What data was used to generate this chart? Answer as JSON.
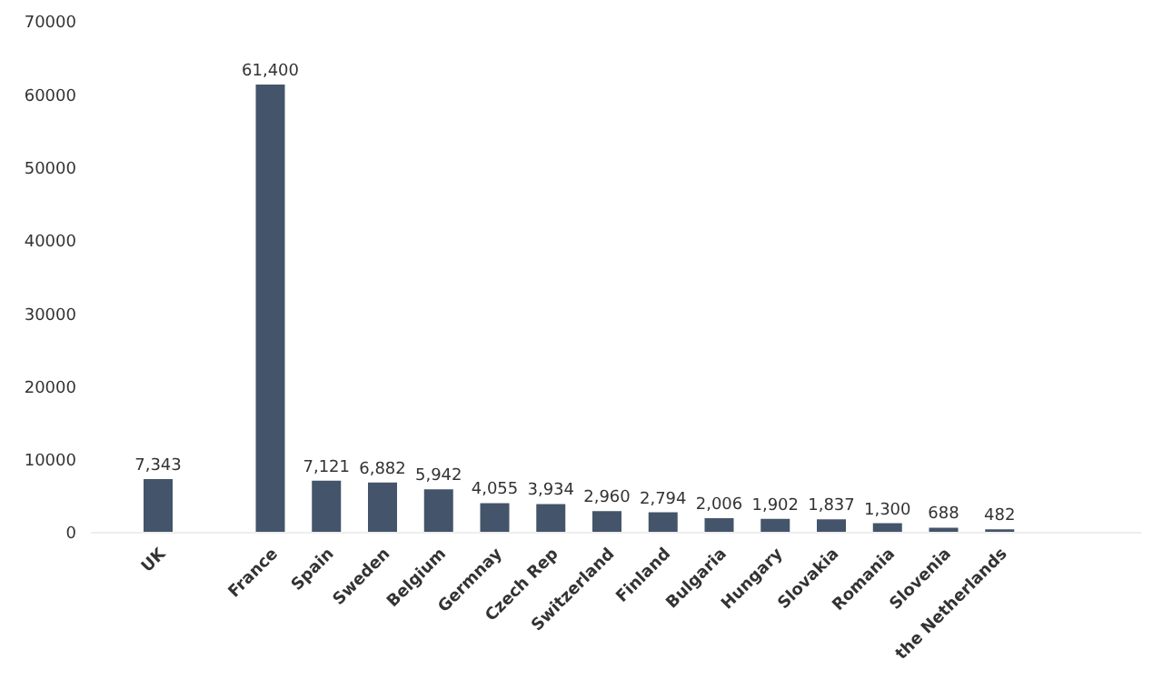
{
  "chart_data": {
    "type": "bar",
    "categories": [
      "UK",
      null,
      "France",
      "Spain",
      "Sweden",
      "Belgium",
      "Germnay",
      "Czech Rep",
      "Switzerland",
      "Finland",
      "Bulgaria",
      "Hungary",
      "Slovakia",
      "Romania",
      "Slovenia",
      "the Netherlands"
    ],
    "values": [
      7343,
      null,
      61400,
      7121,
      6882,
      5942,
      4055,
      3934,
      2960,
      2794,
      2006,
      1902,
      1837,
      1300,
      688,
      482
    ],
    "value_labels": [
      "7,343",
      null,
      "61,400",
      "7,121",
      "6,882",
      "5,942",
      "4,055",
      "3,934",
      "2,960",
      "2,794",
      "2,006",
      "1,902",
      "1,837",
      "1,300",
      "688",
      "482"
    ],
    "color": "#44546a",
    "ylim": [
      0,
      70000
    ],
    "yticks": [
      0,
      10000,
      20000,
      30000,
      40000,
      50000,
      60000,
      70000
    ],
    "grid": false
  }
}
